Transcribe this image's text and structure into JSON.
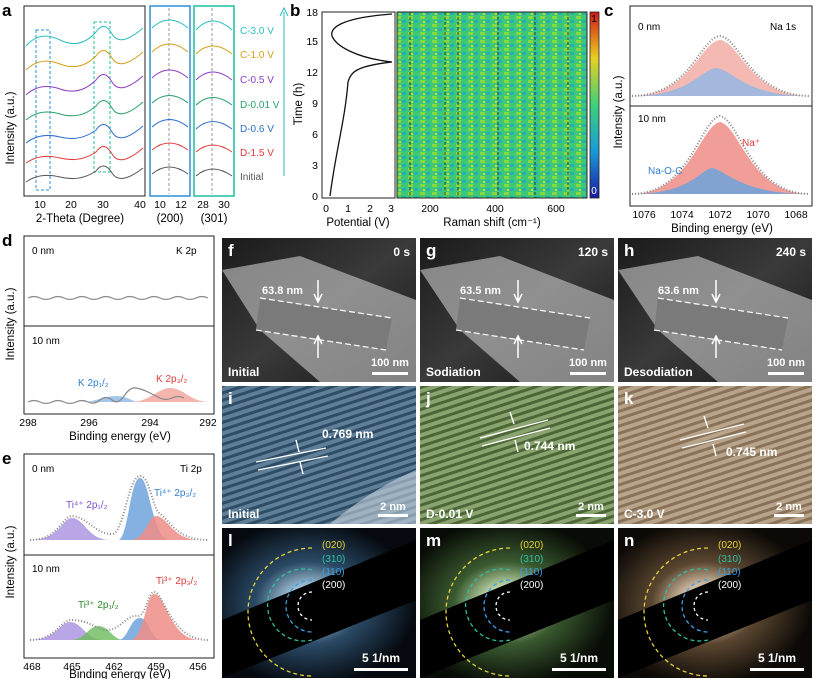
{
  "panels": {
    "a": {
      "letter": "a",
      "ylabel": "Intensity (a.u.)",
      "xlabel_main": "2-Theta (Degree)",
      "ticks_main": [
        "10",
        "20",
        "30",
        "40"
      ],
      "ticks_z1": [
        "10",
        "12"
      ],
      "ticks_z2": [
        "28",
        "30"
      ],
      "hkl1": "(200)",
      "hkl2": "(301)",
      "states": [
        "C-3.0 V",
        "C-1.0 V",
        "C-0.5 V",
        "D-0.01 V",
        "D-0.6 V",
        "D-1.5 V",
        "Initial"
      ],
      "state_colors": [
        "#2bbfc0",
        "#d4a017",
        "#8e3bc7",
        "#2aa26a",
        "#2f6fd0",
        "#e23a3a",
        "#555555"
      ]
    },
    "b": {
      "letter": "b",
      "ylabel": "Time (h)",
      "yticks": [
        "0",
        "3",
        "6",
        "9",
        "12",
        "15",
        "18"
      ],
      "xlabel_left": "Potential (V)",
      "xticks_left": [
        "0",
        "1",
        "2",
        "3"
      ],
      "xlabel_right": "Raman shift (cm⁻¹)",
      "xticks_right": [
        "200",
        "400",
        "600"
      ],
      "cbar_top": "1",
      "cbar_bottom": "0"
    },
    "c": {
      "letter": "c",
      "top_label": "0 nm",
      "bottom_label": "10 nm",
      "element": "Na 1s",
      "peak_na": "Na⁺",
      "peak_naoc": "Na-O-C",
      "ylabel": "Intensity (a.u.)",
      "xlabel": "Binding energy (eV)",
      "xticks": [
        "1076",
        "1074",
        "1072",
        "1070",
        "1068"
      ]
    },
    "d": {
      "letter": "d",
      "top_label": "0 nm",
      "bottom_label": "10 nm",
      "element": "K 2p",
      "peak1": "K 2p₁/₂",
      "peak2": "K 2p₃/₂",
      "ylabel": "Intensity (a.u.)",
      "xlabel": "Binding energy (eV)",
      "xticks": [
        "298",
        "296",
        "294",
        "292"
      ]
    },
    "e": {
      "letter": "e",
      "top_label": "0 nm",
      "bottom_label": "10 nm",
      "element": "Ti 2p",
      "peak_a": "Ti⁴⁺ 2p₁/₂",
      "peak_b": "Ti⁴⁺ 2p₃/₂",
      "peak_c": "Ti³⁺ 2p₁/₂",
      "peak_d": "Ti³⁺ 2p₃/₂",
      "ylabel": "Intensity (a.u.)",
      "xlabel": "Binding energy (eV)",
      "xticks": [
        "468",
        "465",
        "462",
        "459",
        "456"
      ]
    },
    "f": {
      "letter": "f",
      "time": "0 s",
      "width": "63.8 nm",
      "state": "Initial",
      "scale": "100 nm"
    },
    "g": {
      "letter": "g",
      "time": "120 s",
      "width": "63.5 nm",
      "state": "Sodiation",
      "scale": "100 nm"
    },
    "h": {
      "letter": "h",
      "time": "240 s",
      "width": "63.6 nm",
      "state": "Desodiation",
      "scale": "100 nm"
    },
    "i": {
      "letter": "i",
      "spacing": "0.769 nm",
      "state": "Initial",
      "scale": "2 nm"
    },
    "j": {
      "letter": "j",
      "spacing": "0.744 nm",
      "state": "D-0.01 V",
      "scale": "2 nm"
    },
    "k": {
      "letter": "k",
      "spacing": "0.745 nm",
      "state": "C-3.0 V",
      "scale": "2 nm"
    },
    "l": {
      "letter": "l",
      "rings": [
        "(020)",
        "(310)",
        "(110)",
        "(200)"
      ],
      "scale": "5 1/nm"
    },
    "m": {
      "letter": "m",
      "rings": [
        "(020)",
        "(310)",
        "(110)",
        "(200)"
      ],
      "scale": "5 1/nm"
    },
    "n": {
      "letter": "n",
      "rings": [
        "(020)",
        "(310)",
        "(110)",
        "(200)"
      ],
      "scale": "5 1/nm"
    }
  }
}
